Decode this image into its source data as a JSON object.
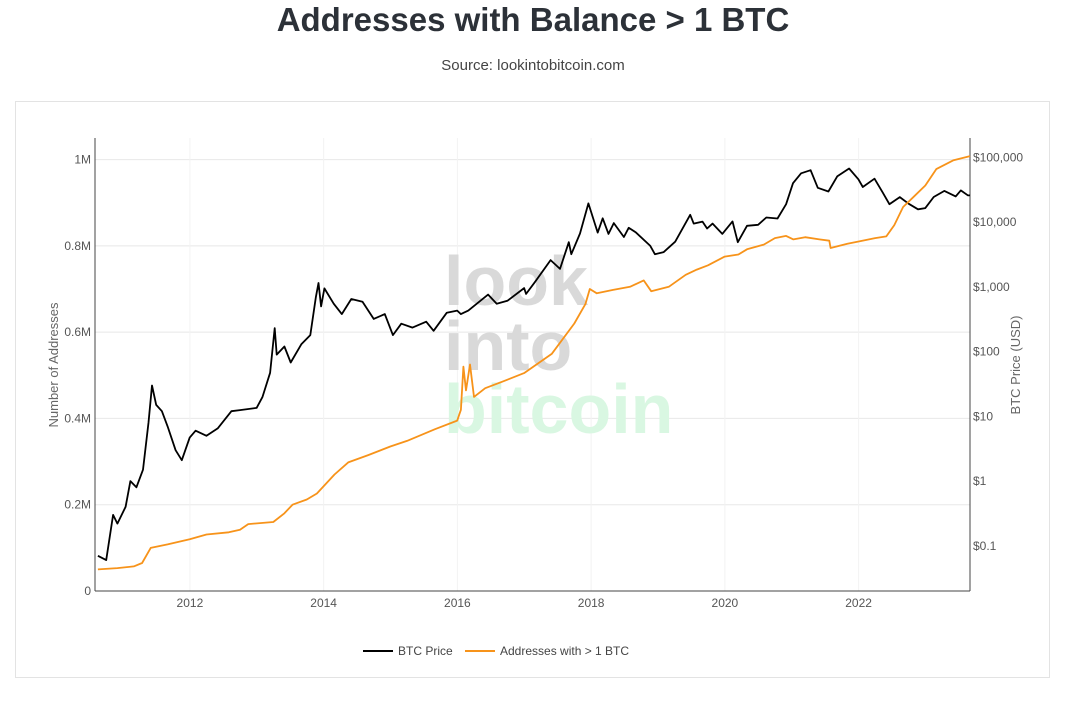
{
  "header": {
    "title": "Addresses with Balance > 1 BTC",
    "subtitle": "Source: lookintobitcoin.com"
  },
  "watermark": [
    "look",
    "into",
    "bitcoin"
  ],
  "colors": {
    "price": "#000000",
    "addresses": "#f7931a",
    "grid": "#e8e8e8"
  },
  "chart_data": {
    "type": "line",
    "title": "Addresses with Balance > 1 BTC",
    "subtitle": "Source: lookintobitcoin.com",
    "xlabel": "",
    "ylabel_left": "Number of Addresses",
    "ylabel_right": "BTC Price (USD)",
    "x_range": [
      "2010-08",
      "2023-09"
    ],
    "x_ticks": [
      "2012",
      "2014",
      "2016",
      "2018",
      "2020",
      "2022"
    ],
    "x_tick_values": [
      2012,
      2014,
      2016,
      2018,
      2020,
      2022
    ],
    "y_left": {
      "range": [
        0,
        1050000
      ],
      "ticks": [
        0,
        200000,
        400000,
        600000,
        800000,
        1000000
      ],
      "tick_labels": [
        "0",
        "0.2M",
        "0.4M",
        "0.6M",
        "0.8M",
        "1M"
      ]
    },
    "y_right": {
      "scale": "log",
      "range": [
        0.02,
        200000
      ],
      "ticks": [
        0.1,
        1,
        10,
        100,
        1000,
        10000,
        100000
      ],
      "tick_labels": [
        "$0.1",
        "$1",
        "$10",
        "$100",
        "$1,000",
        "$10,000",
        "$100,000"
      ]
    },
    "grid": true,
    "legend_position": "bottom-center",
    "series": [
      {
        "name": "BTC Price",
        "axis": "right",
        "points": [
          [
            "2010-08-17",
            0.07
          ],
          [
            "2010-10-01",
            0.06
          ],
          [
            "2010-11-08",
            0.3
          ],
          [
            "2010-12-01",
            0.22
          ],
          [
            "2011-01-15",
            0.4
          ],
          [
            "2011-02-10",
            1.0
          ],
          [
            "2011-03-15",
            0.8
          ],
          [
            "2011-04-20",
            1.5
          ],
          [
            "2011-05-20",
            8.0
          ],
          [
            "2011-06-08",
            30.0
          ],
          [
            "2011-07-01",
            15.0
          ],
          [
            "2011-08-01",
            12.0
          ],
          [
            "2011-09-01",
            7.0
          ],
          [
            "2011-10-15",
            3.0
          ],
          [
            "2011-11-18",
            2.1
          ],
          [
            "2011-12-31",
            4.7
          ],
          [
            "2012-02-01",
            6.0
          ],
          [
            "2012-04-01",
            5.0
          ],
          [
            "2012-06-01",
            6.5
          ],
          [
            "2012-08-15",
            12.0
          ],
          [
            "2012-10-01",
            12.5
          ],
          [
            "2012-12-31",
            13.5
          ],
          [
            "2013-02-01",
            20.0
          ],
          [
            "2013-03-15",
            47.0
          ],
          [
            "2013-04-09",
            230.0
          ],
          [
            "2013-04-20",
            90.0
          ],
          [
            "2013-06-01",
            120.0
          ],
          [
            "2013-07-05",
            68.0
          ],
          [
            "2013-09-01",
            130.0
          ],
          [
            "2013-10-20",
            180.0
          ],
          [
            "2013-11-20",
            700.0
          ],
          [
            "2013-12-04",
            1150.0
          ],
          [
            "2013-12-18",
            500.0
          ],
          [
            "2014-01-05",
            950.0
          ],
          [
            "2014-02-25",
            550.0
          ],
          [
            "2014-04-10",
            380.0
          ],
          [
            "2014-06-01",
            650.0
          ],
          [
            "2014-08-01",
            590.0
          ],
          [
            "2014-10-01",
            320.0
          ],
          [
            "2014-12-01",
            380.0
          ],
          [
            "2015-01-14",
            180.0
          ],
          [
            "2015-03-01",
            270.0
          ],
          [
            "2015-05-01",
            235.0
          ],
          [
            "2015-07-15",
            290.0
          ],
          [
            "2015-08-24",
            210.0
          ],
          [
            "2015-11-04",
            400.0
          ],
          [
            "2015-12-31",
            430.0
          ],
          [
            "2016-01-20",
            380.0
          ],
          [
            "2016-03-01",
            430.0
          ],
          [
            "2016-06-17",
            760.0
          ],
          [
            "2016-08-03",
            550.0
          ],
          [
            "2016-10-01",
            610.0
          ],
          [
            "2016-12-31",
            960.0
          ],
          [
            "2017-01-11",
            780.0
          ],
          [
            "2017-03-01",
            1200.0
          ],
          [
            "2017-05-25",
            2600.0
          ],
          [
            "2017-07-15",
            1900.0
          ],
          [
            "2017-09-01",
            4900.0
          ],
          [
            "2017-09-15",
            3200.0
          ],
          [
            "2017-11-01",
            6700.0
          ],
          [
            "2017-12-17",
            19500.0
          ],
          [
            "2018-02-06",
            6900.0
          ],
          [
            "2018-03-05",
            11500.0
          ],
          [
            "2018-04-06",
            6600.0
          ],
          [
            "2018-05-05",
            9700.0
          ],
          [
            "2018-06-29",
            5900.0
          ],
          [
            "2018-07-25",
            8200.0
          ],
          [
            "2018-09-01",
            7000.0
          ],
          [
            "2018-11-20",
            4300.0
          ],
          [
            "2018-12-15",
            3200.0
          ],
          [
            "2019-02-01",
            3450.0
          ],
          [
            "2019-04-05",
            5000.0
          ],
          [
            "2019-06-26",
            13000.0
          ],
          [
            "2019-07-15",
            9500.0
          ],
          [
            "2019-09-01",
            10200.0
          ],
          [
            "2019-09-26",
            8000.0
          ],
          [
            "2019-10-26",
            9500.0
          ],
          [
            "2019-12-18",
            6600.0
          ],
          [
            "2020-02-12",
            10300.0
          ],
          [
            "2020-03-12",
            4900.0
          ],
          [
            "2020-05-01",
            8800.0
          ],
          [
            "2020-07-01",
            9100.0
          ],
          [
            "2020-08-15",
            11800.0
          ],
          [
            "2020-10-15",
            11400.0
          ],
          [
            "2020-12-01",
            19000.0
          ],
          [
            "2021-01-08",
            40000.0
          ],
          [
            "2021-02-21",
            57000.0
          ],
          [
            "2021-04-14",
            63500.0
          ],
          [
            "2021-05-23",
            34000.0
          ],
          [
            "2021-07-20",
            29800.0
          ],
          [
            "2021-09-06",
            51000.0
          ],
          [
            "2021-11-10",
            67500.0
          ],
          [
            "2021-12-31",
            46000.0
          ],
          [
            "2022-01-24",
            35000.0
          ],
          [
            "2022-03-29",
            47000.0
          ],
          [
            "2022-05-12",
            29000.0
          ],
          [
            "2022-06-18",
            19000.0
          ],
          [
            "2022-08-14",
            24400.0
          ],
          [
            "2022-10-01",
            19300.0
          ],
          [
            "2022-11-21",
            15800.0
          ],
          [
            "2022-12-31",
            16500.0
          ],
          [
            "2023-02-15",
            24500.0
          ],
          [
            "2023-04-14",
            30400.0
          ],
          [
            "2023-06-15",
            25000.0
          ],
          [
            "2023-07-13",
            31000.0
          ],
          [
            "2023-08-20",
            26000.0
          ],
          [
            "2023-09-01",
            25900.0
          ]
        ]
      },
      {
        "name": "Addresses with > 1 BTC",
        "axis": "left",
        "points": [
          [
            "2010-08-17",
            50000
          ],
          [
            "2010-12-01",
            53000
          ],
          [
            "2011-03-01",
            57000
          ],
          [
            "2011-04-15",
            65000
          ],
          [
            "2011-06-01",
            100000
          ],
          [
            "2011-09-01",
            108000
          ],
          [
            "2011-12-31",
            120000
          ],
          [
            "2012-04-01",
            131000
          ],
          [
            "2012-08-01",
            136000
          ],
          [
            "2012-10-01",
            142000
          ],
          [
            "2012-11-15",
            155000
          ],
          [
            "2013-04-01",
            160000
          ],
          [
            "2013-06-01",
            180000
          ],
          [
            "2013-07-15",
            200000
          ],
          [
            "2013-10-01",
            212000
          ],
          [
            "2013-11-25",
            226000
          ],
          [
            "2014-03-01",
            270000
          ],
          [
            "2014-05-15",
            298000
          ],
          [
            "2014-09-01",
            315000
          ],
          [
            "2014-12-31",
            335000
          ],
          [
            "2015-04-01",
            348000
          ],
          [
            "2015-09-01",
            375000
          ],
          [
            "2015-12-31",
            395000
          ],
          [
            "2016-01-20",
            420000
          ],
          [
            "2016-02-03",
            520000
          ],
          [
            "2016-02-17",
            465000
          ],
          [
            "2016-03-10",
            525000
          ],
          [
            "2016-04-01",
            450000
          ],
          [
            "2016-06-01",
            470000
          ],
          [
            "2016-09-01",
            485000
          ],
          [
            "2016-12-31",
            505000
          ],
          [
            "2017-06-01",
            550000
          ],
          [
            "2017-10-01",
            620000
          ],
          [
            "2017-12-01",
            665000
          ],
          [
            "2017-12-25",
            700000
          ],
          [
            "2018-02-01",
            690000
          ],
          [
            "2018-05-01",
            698000
          ],
          [
            "2018-08-01",
            705000
          ],
          [
            "2018-10-15",
            720000
          ],
          [
            "2018-11-25",
            695000
          ],
          [
            "2019-03-01",
            705000
          ],
          [
            "2019-06-01",
            733000
          ],
          [
            "2019-08-01",
            745000
          ],
          [
            "2019-10-01",
            755000
          ],
          [
            "2019-12-31",
            775000
          ],
          [
            "2020-03-15",
            780000
          ],
          [
            "2020-05-01",
            792000
          ],
          [
            "2020-08-01",
            803000
          ],
          [
            "2020-10-01",
            818000
          ],
          [
            "2020-12-01",
            823000
          ],
          [
            "2021-01-10",
            815000
          ],
          [
            "2021-03-15",
            820000
          ],
          [
            "2021-06-01",
            815000
          ],
          [
            "2021-07-25",
            812000
          ],
          [
            "2021-08-01",
            795000
          ],
          [
            "2021-11-01",
            805000
          ],
          [
            "2022-01-01",
            810000
          ],
          [
            "2022-04-01",
            818000
          ],
          [
            "2022-06-01",
            822000
          ],
          [
            "2022-07-15",
            848000
          ],
          [
            "2022-09-01",
            890000
          ],
          [
            "2022-11-01",
            915000
          ],
          [
            "2022-12-31",
            940000
          ],
          [
            "2023-03-01",
            978000
          ],
          [
            "2023-06-01",
            998000
          ],
          [
            "2023-09-01",
            1008000
          ]
        ]
      }
    ]
  }
}
